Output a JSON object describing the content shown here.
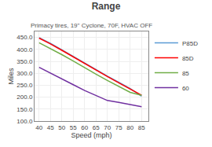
{
  "chart_data": {
    "type": "line",
    "title": "Range",
    "subtitle": "Primacy tires, 19\" Cyclone, 70F, HVAC OFF",
    "xlabel": "Speed (mph)",
    "ylabel": "Miles",
    "xlim": [
      38,
      88
    ],
    "ylim": [
      100,
      475
    ],
    "xticks": [
      40,
      45,
      50,
      55,
      60,
      65,
      70,
      75,
      80,
      85
    ],
    "yticks": [
      {
        "value": 100,
        "label": "100.0"
      },
      {
        "value": 150,
        "label": "150.0"
      },
      {
        "value": 200,
        "label": "200.0"
      },
      {
        "value": 250,
        "label": "250.0"
      },
      {
        "value": 300,
        "label": "300.0"
      },
      {
        "value": 350,
        "label": "350.0"
      },
      {
        "value": 400,
        "label": "400.0"
      },
      {
        "value": 450,
        "label": "450.0"
      }
    ],
    "grid": true,
    "legend": "upper right",
    "x": [
      40,
      45,
      50,
      55,
      60,
      65,
      70,
      75,
      80,
      85
    ],
    "series": [
      {
        "name": "P85D",
        "color": "#5B9BD5",
        "values": [
          449,
          425,
          398,
          370,
          342,
          315,
          288,
          262,
          236,
          204
        ]
      },
      {
        "name": "85D",
        "color": "#FF0000",
        "values": [
          447,
          423,
          396,
          368,
          340,
          313,
          286,
          260,
          234,
          208
        ]
      },
      {
        "name": "85",
        "color": "#70AD47",
        "values": [
          428,
          404,
          378,
          351,
          323,
          296,
          270,
          245,
          220,
          208
        ]
      },
      {
        "name": "60",
        "color": "#7030A0",
        "values": [
          325,
          300,
          276,
          252,
          228,
          206,
          186,
          178,
          168,
          160
        ]
      }
    ]
  }
}
